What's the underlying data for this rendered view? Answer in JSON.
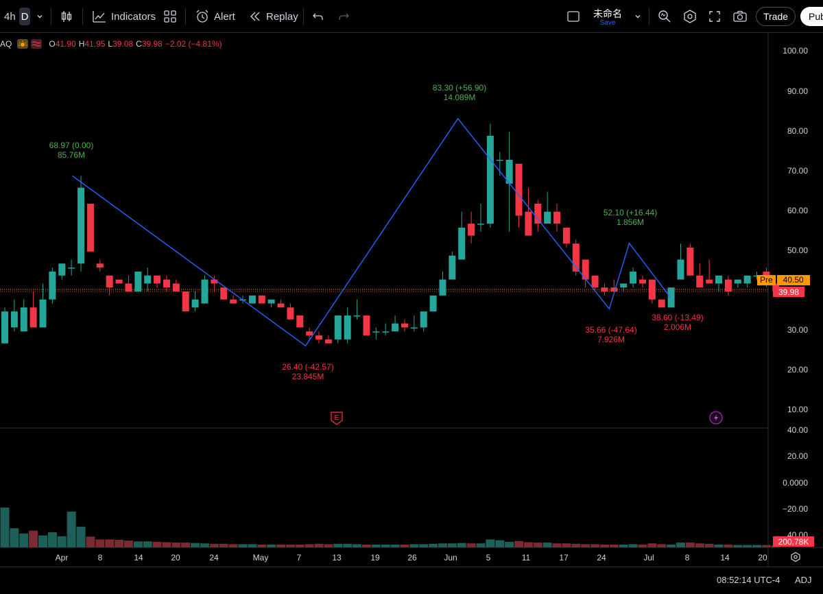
{
  "toolbar": {
    "interval_4h": "4h",
    "interval_d": "D",
    "indicators_label": "Indicators",
    "alert_label": "Alert",
    "replay_label": "Replay",
    "layout_title": "未命名",
    "save_label": "Save",
    "trade_label": "Trade",
    "publish_label": "Pub"
  },
  "legend": {
    "symbol": "AQ",
    "open_label": "O",
    "open": "41.90",
    "high_label": "H",
    "high": "41.95",
    "low_label": "L",
    "low": "39.08",
    "close_label": "C",
    "close": "39.98",
    "change": "−2.02 (−4.81%)"
  },
  "price_axis": [
    "100.00",
    "90.00",
    "80.00",
    "70.00",
    "60.00",
    "50.00",
    "30.00",
    "20.00",
    "10.00"
  ],
  "osc_axis": [
    "40.00",
    "20.00",
    "0.0000",
    "−20.00",
    "40.00"
  ],
  "price_tags": {
    "pre_label": "Pre",
    "pre_value": "40.50",
    "last_value": "39.98",
    "volume_value": "200.78K"
  },
  "annotations": [
    {
      "price": "68.97 (0.00)",
      "vol": "85.76M",
      "dir": "up"
    },
    {
      "price": "26.40 (-42.57)",
      "vol": "23.845M",
      "dir": "down"
    },
    {
      "price": "83.30 (+56.90)",
      "vol": "14.089M",
      "dir": "up"
    },
    {
      "price": "52.10 (+16.44)",
      "vol": "1.856M",
      "dir": "up"
    },
    {
      "price": "35.66 (-47.64)",
      "vol": "7.926M",
      "dir": "down"
    },
    {
      "price": "38.60 (-13.49)",
      "vol": "2.006M",
      "dir": "down"
    }
  ],
  "x_axis": [
    "Apr",
    "8",
    "14",
    "20",
    "24",
    "May",
    "7",
    "13",
    "19",
    "26",
    "Jun",
    "5",
    "11",
    "17",
    "24",
    "Jul",
    "8",
    "14",
    "20"
  ],
  "status": {
    "clock": "08:52:14 UTC-4",
    "adj": "ADJ"
  },
  "colors": {
    "up": "#26a69a",
    "down": "#f23645",
    "zigzag": "#2962ff",
    "pre": "#ff9800"
  },
  "chart_data": {
    "type": "candlestick",
    "ylim": [
      5,
      105
    ],
    "pivots": [
      {
        "date": "Apr 3",
        "price": 68.97
      },
      {
        "date": "May 9",
        "price": 26.4
      },
      {
        "date": "Jun 3",
        "price": 83.3
      },
      {
        "date": "Jun 25",
        "price": 35.66
      },
      {
        "date": "Jun 28",
        "price": 52.1
      },
      {
        "date": "Jul 5",
        "price": 38.6
      }
    ],
    "candles": [
      {
        "o": 27,
        "h": 36,
        "l": 27,
        "c": 35
      },
      {
        "o": 31,
        "h": 38,
        "l": 30,
        "c": 35
      },
      {
        "o": 30,
        "h": 38,
        "l": 30,
        "c": 36
      },
      {
        "o": 36,
        "h": 40,
        "l": 31,
        "c": 31
      },
      {
        "o": 31,
        "h": 42,
        "l": 31,
        "c": 38
      },
      {
        "o": 38,
        "h": 46,
        "l": 37,
        "c": 45
      },
      {
        "o": 44,
        "h": 47,
        "l": 43,
        "c": 47
      },
      {
        "o": 46,
        "h": 48,
        "l": 44,
        "c": 46
      },
      {
        "o": 47,
        "h": 69,
        "l": 45,
        "c": 66
      },
      {
        "o": 62,
        "h": 62,
        "l": 50,
        "c": 50
      },
      {
        "o": 47,
        "h": 48,
        "l": 45,
        "c": 46
      },
      {
        "o": 44,
        "h": 44,
        "l": 39,
        "c": 41
      },
      {
        "o": 43,
        "h": 43,
        "l": 42,
        "c": 42
      },
      {
        "o": 42,
        "h": 44,
        "l": 40,
        "c": 40
      },
      {
        "o": 40,
        "h": 45,
        "l": 40,
        "c": 45
      },
      {
        "o": 42,
        "h": 46,
        "l": 40,
        "c": 44
      },
      {
        "o": 44,
        "h": 44,
        "l": 41,
        "c": 42
      },
      {
        "o": 43,
        "h": 44,
        "l": 40,
        "c": 41
      },
      {
        "o": 42,
        "h": 43,
        "l": 40,
        "c": 40
      },
      {
        "o": 40,
        "h": 40,
        "l": 35,
        "c": 35
      },
      {
        "o": 36,
        "h": 40,
        "l": 35,
        "c": 38
      },
      {
        "o": 37,
        "h": 44,
        "l": 37,
        "c": 43
      },
      {
        "o": 43,
        "h": 44,
        "l": 40,
        "c": 42
      },
      {
        "o": 41,
        "h": 41,
        "l": 38,
        "c": 38
      },
      {
        "o": 38,
        "h": 39,
        "l": 37,
        "c": 37
      },
      {
        "o": 38,
        "h": 39,
        "l": 37,
        "c": 38
      },
      {
        "o": 37,
        "h": 39,
        "l": 37,
        "c": 39
      },
      {
        "o": 39,
        "h": 39,
        "l": 37,
        "c": 37
      },
      {
        "o": 37,
        "h": 38,
        "l": 36,
        "c": 38
      },
      {
        "o": 37,
        "h": 38,
        "l": 36,
        "c": 36
      },
      {
        "o": 36,
        "h": 37,
        "l": 33,
        "c": 33
      },
      {
        "o": 34,
        "h": 34,
        "l": 31,
        "c": 31
      },
      {
        "o": 30,
        "h": 31,
        "l": 28,
        "c": 29
      },
      {
        "o": 29,
        "h": 30,
        "l": 27,
        "c": 28
      },
      {
        "o": 28,
        "h": 29,
        "l": 27,
        "c": 27
      },
      {
        "o": 28,
        "h": 33,
        "l": 27,
        "c": 34
      },
      {
        "o": 28,
        "h": 36,
        "l": 27,
        "c": 34
      },
      {
        "o": 34,
        "h": 38,
        "l": 33,
        "c": 34
      },
      {
        "o": 34,
        "h": 34,
        "l": 29,
        "c": 29
      },
      {
        "o": 30,
        "h": 31,
        "l": 28,
        "c": 30
      },
      {
        "o": 30,
        "h": 32,
        "l": 29,
        "c": 30
      },
      {
        "o": 30,
        "h": 34,
        "l": 30,
        "c": 32
      },
      {
        "o": 32,
        "h": 33,
        "l": 30,
        "c": 31
      },
      {
        "o": 31,
        "h": 34,
        "l": 30,
        "c": 31
      },
      {
        "o": 31,
        "h": 35,
        "l": 30,
        "c": 35
      },
      {
        "o": 35,
        "h": 39,
        "l": 35,
        "c": 39
      },
      {
        "o": 39,
        "h": 45,
        "l": 39,
        "c": 43
      },
      {
        "o": 43,
        "h": 50,
        "l": 43,
        "c": 49
      },
      {
        "o": 48,
        "h": 60,
        "l": 48,
        "c": 56
      },
      {
        "o": 57,
        "h": 60,
        "l": 52,
        "c": 54
      },
      {
        "o": 57,
        "h": 62,
        "l": 55,
        "c": 57
      },
      {
        "o": 57,
        "h": 82,
        "l": 56,
        "c": 79
      },
      {
        "o": 73,
        "h": 75,
        "l": 69,
        "c": 73
      },
      {
        "o": 67,
        "h": 80,
        "l": 55,
        "c": 73
      },
      {
        "o": 72,
        "h": 72,
        "l": 56,
        "c": 59
      },
      {
        "o": 60,
        "h": 66,
        "l": 54,
        "c": 54
      },
      {
        "o": 62,
        "h": 63,
        "l": 55,
        "c": 57
      },
      {
        "o": 57,
        "h": 65,
        "l": 57,
        "c": 60
      },
      {
        "o": 60,
        "h": 62,
        "l": 55,
        "c": 57
      },
      {
        "o": 56,
        "h": 56,
        "l": 51,
        "c": 52
      },
      {
        "o": 52,
        "h": 53,
        "l": 44,
        "c": 45
      },
      {
        "o": 48,
        "h": 48,
        "l": 41,
        "c": 43
      },
      {
        "o": 44,
        "h": 44,
        "l": 40,
        "c": 41
      },
      {
        "o": 41,
        "h": 42,
        "l": 39,
        "c": 40
      },
      {
        "o": 41,
        "h": 43,
        "l": 40,
        "c": 40
      },
      {
        "o": 41,
        "h": 42,
        "l": 40,
        "c": 42
      },
      {
        "o": 42,
        "h": 46,
        "l": 41,
        "c": 45
      },
      {
        "o": 43,
        "h": 44,
        "l": 41,
        "c": 42
      },
      {
        "o": 43,
        "h": 43,
        "l": 37,
        "c": 38
      },
      {
        "o": 38,
        "h": 38,
        "l": 36,
        "c": 36
      },
      {
        "o": 36,
        "h": 41,
        "l": 36,
        "c": 41
      },
      {
        "o": 43,
        "h": 52,
        "l": 43,
        "c": 48
      },
      {
        "o": 51,
        "h": 52,
        "l": 44,
        "c": 44
      },
      {
        "o": 44,
        "h": 47,
        "l": 41,
        "c": 41
      },
      {
        "o": 43,
        "h": 48,
        "l": 42,
        "c": 42
      },
      {
        "o": 42,
        "h": 44,
        "l": 40,
        "c": 44
      },
      {
        "o": 43,
        "h": 44,
        "l": 39,
        "c": 40
      },
      {
        "o": 42,
        "h": 43,
        "l": 41,
        "c": 43
      },
      {
        "o": 42,
        "h": 44,
        "l": 41,
        "c": 44
      },
      {
        "o": 44,
        "h": 45,
        "l": 43,
        "c": 44
      },
      {
        "o": 45,
        "h": 46,
        "l": 41,
        "c": 42
      },
      {
        "o": 42,
        "h": 42,
        "l": 39,
        "c": 40
      }
    ],
    "volume_relative": [
      1.0,
      0.48,
      0.35,
      0.42,
      0.3,
      0.38,
      0.28,
      0.9,
      0.52,
      0.27,
      0.2,
      0.2,
      0.19,
      0.17,
      0.15,
      0.15,
      0.14,
      0.13,
      0.12,
      0.12,
      0.11,
      0.1,
      0.09,
      0.09,
      0.08,
      0.08,
      0.08,
      0.07,
      0.07,
      0.07,
      0.07,
      0.07,
      0.08,
      0.09,
      0.08,
      0.09,
      0.09,
      0.08,
      0.07,
      0.07,
      0.07,
      0.07,
      0.07,
      0.08,
      0.08,
      0.09,
      0.1,
      0.1,
      0.11,
      0.1,
      0.1,
      0.2,
      0.18,
      0.14,
      0.16,
      0.13,
      0.12,
      0.12,
      0.1,
      0.1,
      0.09,
      0.08,
      0.08,
      0.07,
      0.07,
      0.07,
      0.08,
      0.07,
      0.1,
      0.08,
      0.07,
      0.12,
      0.12,
      0.1,
      0.09,
      0.07,
      0.07,
      0.06,
      0.06,
      0.06,
      0.06,
      0.05
    ]
  }
}
